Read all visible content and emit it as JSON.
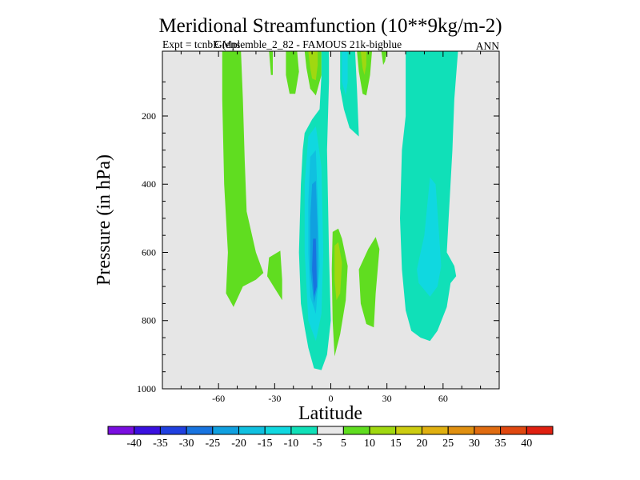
{
  "chart_data": {
    "type": "contour",
    "title": "Meridional Streamfunction (10**9kg/m-2)",
    "subtitle_left": "Expt = tcnbE (ensemble_2_82 - FAMOUS 21k-bigblue",
    "subtitle_overlap": "GMpl",
    "subtitle_right": "ANN",
    "xlabel": "Latitude",
    "ylabel": "Pressure (in hPa)",
    "xlim": [
      -90,
      90
    ],
    "ylim": [
      1000,
      10
    ],
    "x_ticks": [
      {
        "value": -60,
        "label": "-60"
      },
      {
        "value": -30,
        "label": "-30"
      },
      {
        "value": 0,
        "label": "0"
      },
      {
        "value": 30,
        "label": "30"
      },
      {
        "value": 60,
        "label": "60"
      }
    ],
    "y_ticks": [
      {
        "value": 200,
        "label": "200"
      },
      {
        "value": 400,
        "label": "400"
      },
      {
        "value": 600,
        "label": "600"
      },
      {
        "value": 800,
        "label": "800"
      },
      {
        "value": 1000,
        "label": "1000"
      }
    ],
    "background_color": "#e6e6e6",
    "colorbar": {
      "levels": [
        -45,
        -40,
        -35,
        -30,
        -25,
        -20,
        -15,
        -10,
        -5,
        5,
        10,
        15,
        20,
        25,
        30,
        35,
        40,
        45
      ],
      "labels": [
        "-40",
        "-35",
        "-30",
        "-25",
        "-20",
        "-15",
        "-10",
        "-5",
        "5",
        "10",
        "15",
        "20",
        "25",
        "30",
        "35",
        "40"
      ],
      "colors": [
        "#7a0ee0",
        "#3a10e0",
        "#2040e0",
        "#1874e0",
        "#10a0e0",
        "#10c0e0",
        "#10d8e0",
        "#10e0b8",
        "#e8e8e8",
        "#60dd20",
        "#a0d810",
        "#cccc10",
        "#e0b010",
        "#e09010",
        "#e06c10",
        "#e04810",
        "#e02010"
      ]
    },
    "regions": [
      {
        "level": "5 to 10",
        "color": "#60dd20",
        "points": [
          [
            -58,
            10
          ],
          [
            -48,
            10
          ],
          [
            -47,
            150
          ],
          [
            -46,
            330
          ],
          [
            -45,
            480
          ],
          [
            -40,
            600
          ],
          [
            -36,
            660
          ],
          [
            -40,
            680
          ],
          [
            -47,
            700
          ],
          [
            -52,
            760
          ],
          [
            -56,
            720
          ],
          [
            -55,
            600
          ],
          [
            -57,
            400
          ],
          [
            -58,
            150
          ]
        ]
      },
      {
        "level": "5 to 10",
        "color": "#60dd20",
        "points": [
          [
            -33,
            615
          ],
          [
            -27,
            595
          ],
          [
            -26,
            680
          ],
          [
            -26,
            740
          ],
          [
            -30,
            705
          ],
          [
            -34,
            670
          ]
        ]
      },
      {
        "level": "5 to 10",
        "color": "#60dd20",
        "points": [
          [
            -33,
            10
          ],
          [
            -31,
            10
          ],
          [
            -31,
            80
          ],
          [
            -32,
            80
          ]
        ]
      },
      {
        "level": "5 to 10",
        "color": "#60dd20",
        "points": [
          [
            -24,
            10
          ],
          [
            -18,
            10
          ],
          [
            -17,
            70
          ],
          [
            -19,
            135
          ],
          [
            -22,
            135
          ],
          [
            -24,
            80
          ]
        ]
      },
      {
        "level": "5 to 10",
        "color": "#60dd20",
        "points": [
          [
            -14,
            10
          ],
          [
            -5,
            10
          ],
          [
            -5,
            80
          ],
          [
            -8,
            140
          ],
          [
            -11,
            120
          ],
          [
            -13,
            60
          ]
        ]
      },
      {
        "level": "10 to 15",
        "color": "#a0d810",
        "points": [
          [
            -12,
            10
          ],
          [
            -7,
            10
          ],
          [
            -7,
            50
          ],
          [
            -8,
            95
          ],
          [
            -10,
            90
          ],
          [
            -11,
            60
          ]
        ]
      },
      {
        "level": "-5 to -10",
        "color": "#10e0b8",
        "points": [
          [
            -5,
            10
          ],
          [
            -1,
            10
          ],
          [
            -1,
            100
          ],
          [
            -2,
            300
          ],
          [
            -1,
            600
          ],
          [
            0,
            800
          ],
          [
            -2,
            900
          ],
          [
            -5,
            945
          ],
          [
            -9,
            940
          ],
          [
            -12,
            880
          ],
          [
            -14,
            820
          ],
          [
            -16,
            750
          ],
          [
            -17,
            600
          ],
          [
            -16,
            400
          ],
          [
            -15,
            300
          ],
          [
            -14,
            250
          ],
          [
            -10,
            210
          ],
          [
            -6,
            180
          ],
          [
            -5,
            80
          ]
        ]
      },
      {
        "level": "-10 to -15",
        "color": "#10d8e0",
        "points": [
          [
            -12,
            260
          ],
          [
            -8,
            230
          ],
          [
            -5,
            350
          ],
          [
            -4,
            600
          ],
          [
            -5,
            780
          ],
          [
            -8,
            860
          ],
          [
            -12,
            800
          ],
          [
            -14,
            600
          ],
          [
            -14,
            400
          ]
        ]
      },
      {
        "level": "-15 to -20",
        "color": "#10c0e0",
        "points": [
          [
            -11,
            320
          ],
          [
            -8,
            300
          ],
          [
            -7,
            450
          ],
          [
            -6,
            640
          ],
          [
            -8,
            780
          ],
          [
            -11,
            730
          ],
          [
            -12,
            600
          ],
          [
            -12,
            450
          ]
        ]
      },
      {
        "level": "-20 to -25",
        "color": "#10a0e0",
        "points": [
          [
            -10,
            400
          ],
          [
            -8,
            390
          ],
          [
            -7,
            540
          ],
          [
            -7,
            700
          ],
          [
            -9,
            750
          ],
          [
            -11,
            650
          ],
          [
            -11,
            500
          ]
        ]
      },
      {
        "level": "-25 to -30",
        "color": "#1874e0",
        "points": [
          [
            -9.5,
            560
          ],
          [
            -8,
            560
          ],
          [
            -7.5,
            700
          ],
          [
            -9,
            730
          ],
          [
            -10,
            650
          ]
        ]
      },
      {
        "level": "5 to 10",
        "color": "#60dd20",
        "points": [
          [
            1,
            540
          ],
          [
            4,
            530
          ],
          [
            6,
            560
          ],
          [
            9,
            640
          ],
          [
            8,
            740
          ],
          [
            5,
            840
          ],
          [
            2,
            905
          ],
          [
            1,
            800
          ],
          [
            0.5,
            650
          ]
        ]
      },
      {
        "level": "10 to 15",
        "color": "#a0d810",
        "points": [
          [
            2,
            580
          ],
          [
            4,
            570
          ],
          [
            6,
            630
          ],
          [
            5,
            720
          ],
          [
            3,
            740
          ],
          [
            2,
            680
          ]
        ]
      },
      {
        "level": "-5 to -10",
        "color": "#10e0b8",
        "points": [
          [
            5,
            10
          ],
          [
            13,
            10
          ],
          [
            14,
            120
          ],
          [
            15,
            260
          ],
          [
            10,
            235
          ],
          [
            7,
            180
          ],
          [
            5,
            120
          ]
        ]
      },
      {
        "level": "-10 to -15",
        "color": "#10d8e0",
        "points": [
          [
            6,
            10
          ],
          [
            9,
            10
          ],
          [
            9,
            100
          ],
          [
            8,
            140
          ],
          [
            6,
            100
          ]
        ]
      },
      {
        "level": "5 to 10",
        "color": "#60dd20",
        "points": [
          [
            14,
            10
          ],
          [
            22,
            10
          ],
          [
            21,
            80
          ],
          [
            19,
            140
          ],
          [
            17,
            135
          ],
          [
            15,
            70
          ]
        ]
      },
      {
        "level": "10 to 15",
        "color": "#a0d810",
        "points": [
          [
            16,
            10
          ],
          [
            19,
            10
          ],
          [
            19,
            50
          ],
          [
            18,
            80
          ],
          [
            17,
            60
          ]
        ]
      },
      {
        "level": "5 to 10",
        "color": "#60dd20",
        "points": [
          [
            27,
            10
          ],
          [
            30,
            10
          ],
          [
            29,
            40
          ],
          [
            28,
            50
          ]
        ]
      },
      {
        "level": "5 to 10",
        "color": "#60dd20",
        "points": [
          [
            15,
            650
          ],
          [
            20,
            590
          ],
          [
            24,
            555
          ],
          [
            26,
            590
          ],
          [
            24,
            720
          ],
          [
            23,
            820
          ],
          [
            19,
            810
          ],
          [
            16,
            750
          ]
        ]
      },
      {
        "level": "-5 to -10",
        "color": "#10e0b8",
        "points": [
          [
            40,
            10
          ],
          [
            68,
            10
          ],
          [
            66,
            150
          ],
          [
            65,
            300
          ],
          [
            63,
            500
          ],
          [
            62,
            600
          ],
          [
            66,
            640
          ],
          [
            67,
            670
          ],
          [
            64,
            690
          ],
          [
            62,
            760
          ],
          [
            57,
            830
          ],
          [
            53,
            860
          ],
          [
            48,
            850
          ],
          [
            43,
            830
          ],
          [
            40,
            770
          ],
          [
            38,
            650
          ],
          [
            37,
            500
          ],
          [
            38,
            300
          ],
          [
            40,
            200
          ]
        ]
      },
      {
        "level": "-10 to -15",
        "color": "#10d8e0",
        "points": [
          [
            53,
            380
          ],
          [
            56,
            400
          ],
          [
            58,
            560
          ],
          [
            59,
            640
          ],
          [
            57,
            700
          ],
          [
            53,
            730
          ],
          [
            47,
            690
          ],
          [
            46,
            650
          ],
          [
            50,
            550
          ]
        ]
      }
    ]
  }
}
